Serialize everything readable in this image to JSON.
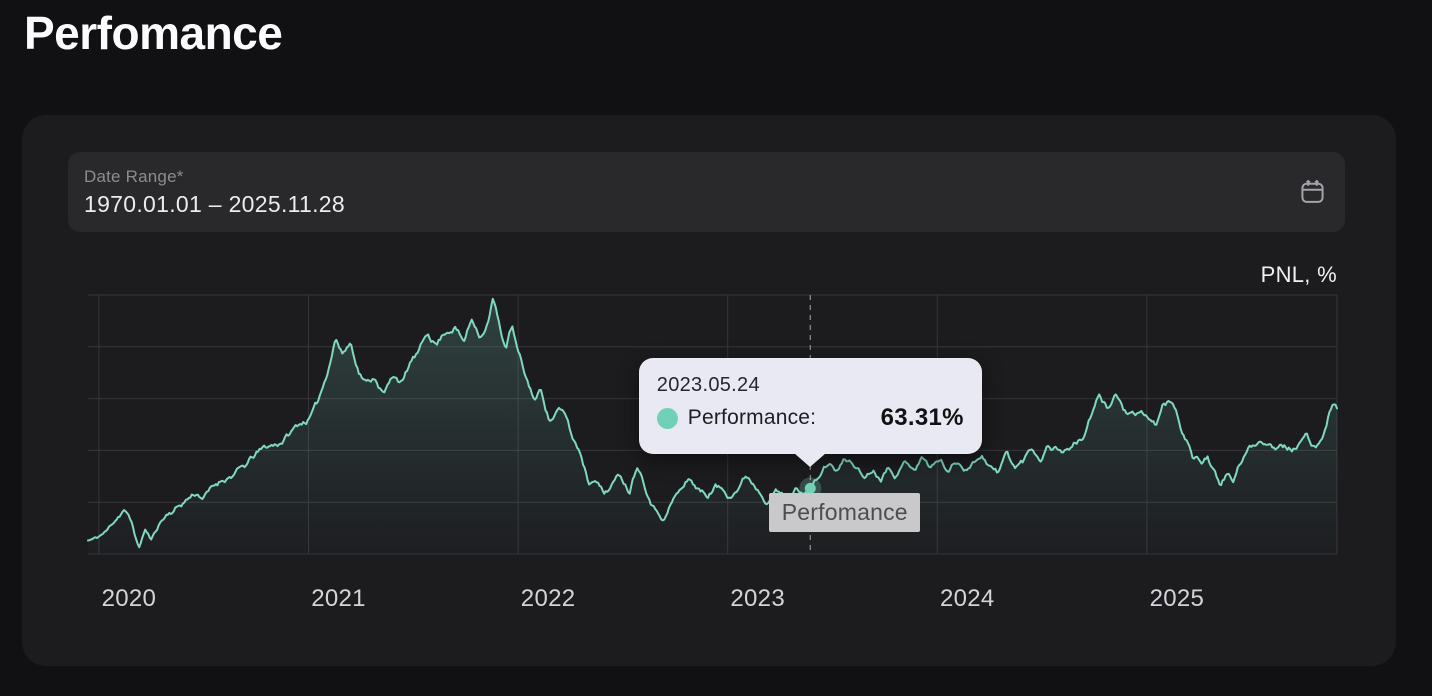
{
  "page": {
    "title": "Perfomance"
  },
  "date_range": {
    "label": "Date Range",
    "required_marker": "*",
    "value": "1970.01.01 – 2025.11.28"
  },
  "tooltip": {
    "date": "2023.05.24",
    "series_label": "Performance:",
    "value": "63.31%"
  },
  "colors": {
    "page_bg": "#111113",
    "card_bg": "#1c1c1f",
    "field_bg": "#29292c",
    "grid": "#36363b",
    "line": "#7fd8c0",
    "area_top": "rgba(127,216,192,0.20)",
    "area_bottom": "rgba(127,216,192,0.01)",
    "crosshair": "#909096",
    "dot": "#6fd2b6",
    "dot_halo": "rgba(127,216,192,0.25)",
    "tooltip_bg": "#e9e9f3",
    "tag_bg": "#c9c9cb"
  },
  "chart_data": {
    "type": "line",
    "title": "Perfomance",
    "xlabel": "",
    "ylabel": "PNL, %",
    "grid": true,
    "legend_position": "none",
    "x_ticks": [
      "2020",
      "2021",
      "2022",
      "2023",
      "2024",
      "2025"
    ],
    "x_range_decimal_years": [
      2019.948,
      2025.907
    ],
    "y_range": [
      0,
      250
    ],
    "pointer_tag": "Perfomance",
    "marked_point": {
      "date": "2023.05.24",
      "decimal_year": 2023.394,
      "series": "Performance",
      "value_pct": 63.31,
      "display_value": "63.31%"
    },
    "noise": {
      "seed": 11,
      "amplitude": 5,
      "persistence": 0.93
    },
    "series": [
      {
        "name": "Performance",
        "color": "#7fd8c0",
        "samples_decimal_year_pct": [
          [
            2019.95,
            13
          ],
          [
            2019.99,
            15
          ],
          [
            2020.04,
            22
          ],
          [
            2020.08,
            34
          ],
          [
            2020.12,
            45
          ],
          [
            2020.16,
            28
          ],
          [
            2020.19,
            5
          ],
          [
            2020.22,
            24
          ],
          [
            2020.25,
            13
          ],
          [
            2020.29,
            30
          ],
          [
            2020.33,
            40
          ],
          [
            2020.38,
            47
          ],
          [
            2020.42,
            54
          ],
          [
            2020.46,
            60
          ],
          [
            2020.5,
            57
          ],
          [
            2020.55,
            65
          ],
          [
            2020.6,
            74
          ],
          [
            2020.65,
            80
          ],
          [
            2020.7,
            84
          ],
          [
            2020.75,
            95
          ],
          [
            2020.8,
            101
          ],
          [
            2020.85,
            105
          ],
          [
            2020.9,
            114
          ],
          [
            2020.95,
            124
          ],
          [
            2021.0,
            131
          ],
          [
            2021.04,
            142
          ],
          [
            2021.08,
            168
          ],
          [
            2021.13,
            212
          ],
          [
            2021.16,
            195
          ],
          [
            2021.2,
            206
          ],
          [
            2021.24,
            180
          ],
          [
            2021.28,
            167
          ],
          [
            2021.32,
            173
          ],
          [
            2021.36,
            157
          ],
          [
            2021.41,
            174
          ],
          [
            2021.45,
            167
          ],
          [
            2021.49,
            186
          ],
          [
            2021.53,
            194
          ],
          [
            2021.57,
            212
          ],
          [
            2021.61,
            203
          ],
          [
            2021.65,
            215
          ],
          [
            2021.7,
            223
          ],
          [
            2021.74,
            206
          ],
          [
            2021.78,
            228
          ],
          [
            2021.82,
            214
          ],
          [
            2021.86,
            230
          ],
          [
            2021.88,
            250
          ],
          [
            2021.91,
            222
          ],
          [
            2021.94,
            200
          ],
          [
            2021.97,
            221
          ],
          [
            2022.0,
            193
          ],
          [
            2022.04,
            166
          ],
          [
            2022.08,
            148
          ],
          [
            2022.11,
            157
          ],
          [
            2022.15,
            130
          ],
          [
            2022.19,
            140
          ],
          [
            2022.23,
            131
          ],
          [
            2022.26,
            110
          ],
          [
            2022.3,
            96
          ],
          [
            2022.34,
            69
          ],
          [
            2022.37,
            79
          ],
          [
            2022.41,
            62
          ],
          [
            2022.45,
            71
          ],
          [
            2022.49,
            77
          ],
          [
            2022.53,
            64
          ],
          [
            2022.57,
            92
          ],
          [
            2022.61,
            71
          ],
          [
            2022.65,
            52
          ],
          [
            2022.7,
            42
          ],
          [
            2022.74,
            58
          ],
          [
            2022.78,
            65
          ],
          [
            2022.82,
            74
          ],
          [
            2022.86,
            64
          ],
          [
            2022.9,
            57
          ],
          [
            2022.94,
            67
          ],
          [
            2023.0,
            59
          ],
          [
            2023.05,
            69
          ],
          [
            2023.09,
            79
          ],
          [
            2023.14,
            68
          ],
          [
            2023.18,
            60
          ],
          [
            2023.23,
            68
          ],
          [
            2023.28,
            57
          ],
          [
            2023.33,
            65
          ],
          [
            2023.394,
            63.31
          ],
          [
            2023.44,
            77
          ],
          [
            2023.48,
            88
          ],
          [
            2023.52,
            80
          ],
          [
            2023.56,
            90
          ],
          [
            2023.61,
            86
          ],
          [
            2023.65,
            74
          ],
          [
            2023.69,
            83
          ],
          [
            2023.73,
            77
          ],
          [
            2023.77,
            90
          ],
          [
            2023.81,
            83
          ],
          [
            2023.85,
            93
          ],
          [
            2023.89,
            89
          ],
          [
            2023.93,
            97
          ],
          [
            2023.97,
            87
          ],
          [
            2024.01,
            93
          ],
          [
            2024.05,
            83
          ],
          [
            2024.09,
            90
          ],
          [
            2024.13,
            87
          ],
          [
            2024.17,
            91
          ],
          [
            2024.21,
            100
          ],
          [
            2024.25,
            90
          ],
          [
            2024.29,
            80
          ],
          [
            2024.33,
            98
          ],
          [
            2024.37,
            84
          ],
          [
            2024.41,
            89
          ],
          [
            2024.45,
            102
          ],
          [
            2024.49,
            94
          ],
          [
            2024.53,
            108
          ],
          [
            2024.57,
            105
          ],
          [
            2024.61,
            103
          ],
          [
            2024.65,
            108
          ],
          [
            2024.69,
            112
          ],
          [
            2024.73,
            132
          ],
          [
            2024.77,
            150
          ],
          [
            2024.81,
            139
          ],
          [
            2024.85,
            156
          ],
          [
            2024.89,
            140
          ],
          [
            2024.94,
            131
          ],
          [
            2025.0,
            129
          ],
          [
            2025.04,
            121
          ],
          [
            2025.08,
            142
          ],
          [
            2025.12,
            145
          ],
          [
            2025.16,
            121
          ],
          [
            2025.19,
            111
          ],
          [
            2025.22,
            93
          ],
          [
            2025.26,
            88
          ],
          [
            2025.29,
            97
          ],
          [
            2025.32,
            80
          ],
          [
            2025.35,
            62
          ],
          [
            2025.38,
            74
          ],
          [
            2025.41,
            69
          ],
          [
            2025.45,
            88
          ],
          [
            2025.49,
            100
          ],
          [
            2025.53,
            108
          ],
          [
            2025.57,
            112
          ],
          [
            2025.61,
            106
          ],
          [
            2025.64,
            114
          ],
          [
            2025.67,
            110
          ],
          [
            2025.7,
            108
          ],
          [
            2025.73,
            112
          ],
          [
            2025.76,
            114
          ],
          [
            2025.79,
            102
          ],
          [
            2025.82,
            107
          ],
          [
            2025.85,
            123
          ],
          [
            2025.87,
            139
          ],
          [
            2025.89,
            152
          ],
          [
            2025.905,
            146
          ]
        ]
      }
    ]
  }
}
